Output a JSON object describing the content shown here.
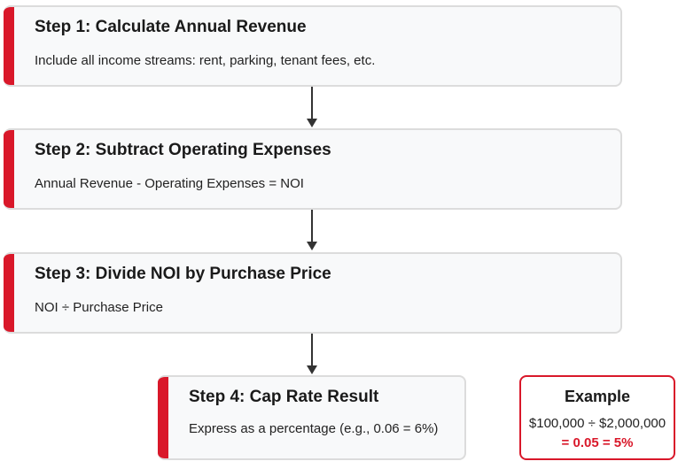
{
  "steps": [
    {
      "title": "Step 1: Calculate Annual Revenue",
      "description": "Include all income streams: rent, parking, tenant fees, etc."
    },
    {
      "title": "Step 2: Subtract Operating Expenses",
      "description": "Annual Revenue - Operating Expenses = NOI"
    },
    {
      "title": "Step 3: Divide NOI by Purchase Price",
      "description": "NOI ÷ Purchase Price"
    },
    {
      "title": "Step 4: Cap Rate Result",
      "description": "Express as a percentage (e.g., 0.06 = 6%)"
    }
  ],
  "example": {
    "title": "Example",
    "calculation": "$100,000 ÷ $2,000,000",
    "result": "= 0.05 = 5%"
  },
  "colors": {
    "accent": "#d9182a",
    "box_background": "#f8f9fa",
    "box_border": "#dcdcdc",
    "arrow": "#333333"
  }
}
